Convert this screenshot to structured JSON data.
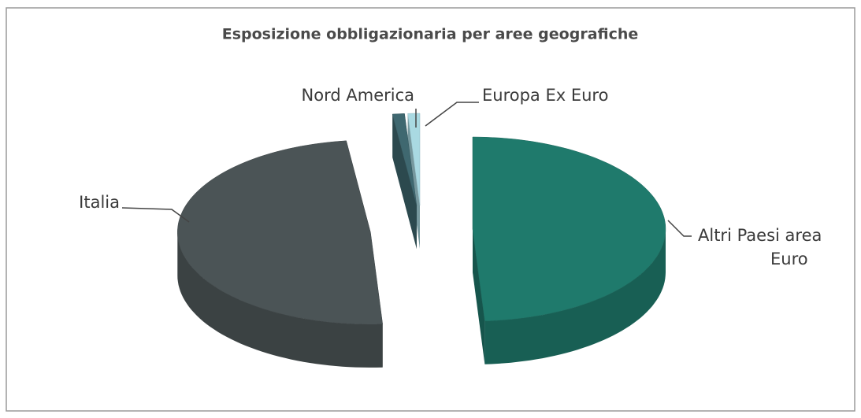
{
  "chart_data": {
    "type": "pie3d",
    "title": "Esposizione obbligazionaria per aree geografiche",
    "categories": [
      "Altri Paesi area Euro",
      "Italia",
      "Nord America",
      "Europa Ex Euro"
    ],
    "values": [
      49,
      49,
      1,
      1
    ],
    "colors": [
      "#1f7a6c",
      "#4b5456",
      "#3f6870",
      "#a9d9e2"
    ]
  }
}
